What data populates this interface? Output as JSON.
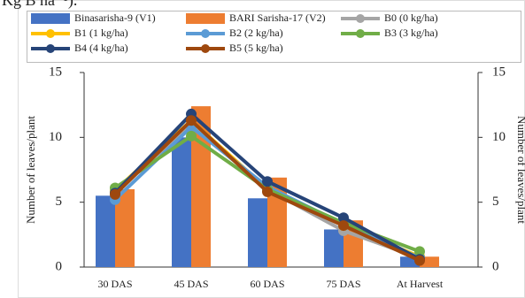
{
  "caption_fragment": "Kg B ha⁻¹).",
  "chart_data": {
    "type": "bar",
    "categories": [
      "30 DAS",
      "45 DAS",
      "60 DAS",
      "75 DAS",
      "At Harvest"
    ],
    "ylabel": "Number of leaves/plant",
    "y2label": "Number of leaves/plant",
    "ylim": [
      0,
      15
    ],
    "yticks": [
      0,
      5,
      10,
      15
    ],
    "y2lim": [
      0,
      15
    ],
    "y2ticks": [
      0,
      5,
      10,
      15
    ],
    "series": [
      {
        "name": "Binasarisha-9 (V1)",
        "type": "bar",
        "color": "#4472c4",
        "values": [
          5.5,
          10.0,
          5.3,
          2.9,
          0.8
        ]
      },
      {
        "name": "BARI Sarisha-17 (V2)",
        "type": "bar",
        "color": "#ed7d31",
        "values": [
          6.0,
          12.4,
          6.9,
          3.6,
          0.8
        ]
      },
      {
        "name": "B0 (0 kg/ha)",
        "type": "line",
        "axis": "y2",
        "color": "#a5a5a5",
        "values": [
          5.8,
          11.0,
          6.0,
          2.8,
          0.7
        ]
      },
      {
        "name": "B1 (1 kg/ha)",
        "type": "line",
        "axis": "y2",
        "color": "#ffc000",
        "values": [
          5.9,
          11.3,
          6.0,
          3.2,
          0.8
        ]
      },
      {
        "name": "B2 (2 kg/ha)",
        "type": "line",
        "axis": "y2",
        "color": "#5b9bd5",
        "values": [
          5.2,
          10.8,
          6.2,
          3.3,
          0.7
        ]
      },
      {
        "name": "B3 (3 kg/ha)",
        "type": "line",
        "axis": "y2",
        "color": "#70ad47",
        "values": [
          6.1,
          10.1,
          6.0,
          3.4,
          1.2
        ]
      },
      {
        "name": "B4 (4 kg/ha)",
        "type": "line",
        "axis": "y2",
        "color": "#264478",
        "values": [
          5.7,
          11.8,
          6.6,
          3.8,
          0.6
        ]
      },
      {
        "name": "B5 (5 kg/ha)",
        "type": "line",
        "axis": "y2",
        "color": "#9e480e",
        "values": [
          5.6,
          11.3,
          5.8,
          3.2,
          0.5
        ]
      }
    ]
  }
}
